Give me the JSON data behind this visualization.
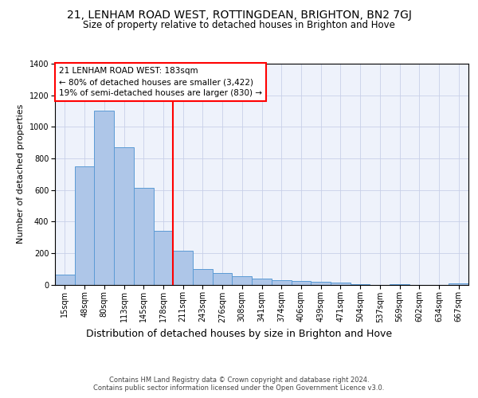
{
  "title": "21, LENHAM ROAD WEST, ROTTINGDEAN, BRIGHTON, BN2 7GJ",
  "subtitle": "Size of property relative to detached houses in Brighton and Hove",
  "xlabel": "Distribution of detached houses by size in Brighton and Hove",
  "ylabel": "Number of detached properties",
  "footer_line1": "Contains HM Land Registry data © Crown copyright and database right 2024.",
  "footer_line2": "Contains public sector information licensed under the Open Government Licence v3.0.",
  "annotation_title": "21 LENHAM ROAD WEST: 183sqm",
  "annotation_line1": "← 80% of detached houses are smaller (3,422)",
  "annotation_line2": "19% of semi-detached houses are larger (830) →",
  "categories": [
    "15sqm",
    "48sqm",
    "80sqm",
    "113sqm",
    "145sqm",
    "178sqm",
    "211sqm",
    "243sqm",
    "276sqm",
    "308sqm",
    "341sqm",
    "374sqm",
    "406sqm",
    "439sqm",
    "471sqm",
    "504sqm",
    "537sqm",
    "569sqm",
    "602sqm",
    "634sqm",
    "667sqm"
  ],
  "values": [
    65,
    750,
    1100,
    870,
    615,
    340,
    215,
    100,
    75,
    55,
    40,
    30,
    25,
    20,
    15,
    5,
    0,
    5,
    0,
    0,
    10
  ],
  "bar_color": "#aec6e8",
  "bar_edge_color": "#5b9bd5",
  "red_line_index": 5,
  "ylim": [
    0,
    1400
  ],
  "yticks": [
    0,
    200,
    400,
    600,
    800,
    1000,
    1200,
    1400
  ],
  "background_color": "#eef2fb",
  "grid_color": "#c8d0e8",
  "title_fontsize": 10,
  "subtitle_fontsize": 8.5,
  "xlabel_fontsize": 9,
  "ylabel_fontsize": 8,
  "annotation_fontsize": 7.5,
  "footer_fontsize": 6,
  "tick_fontsize": 7
}
